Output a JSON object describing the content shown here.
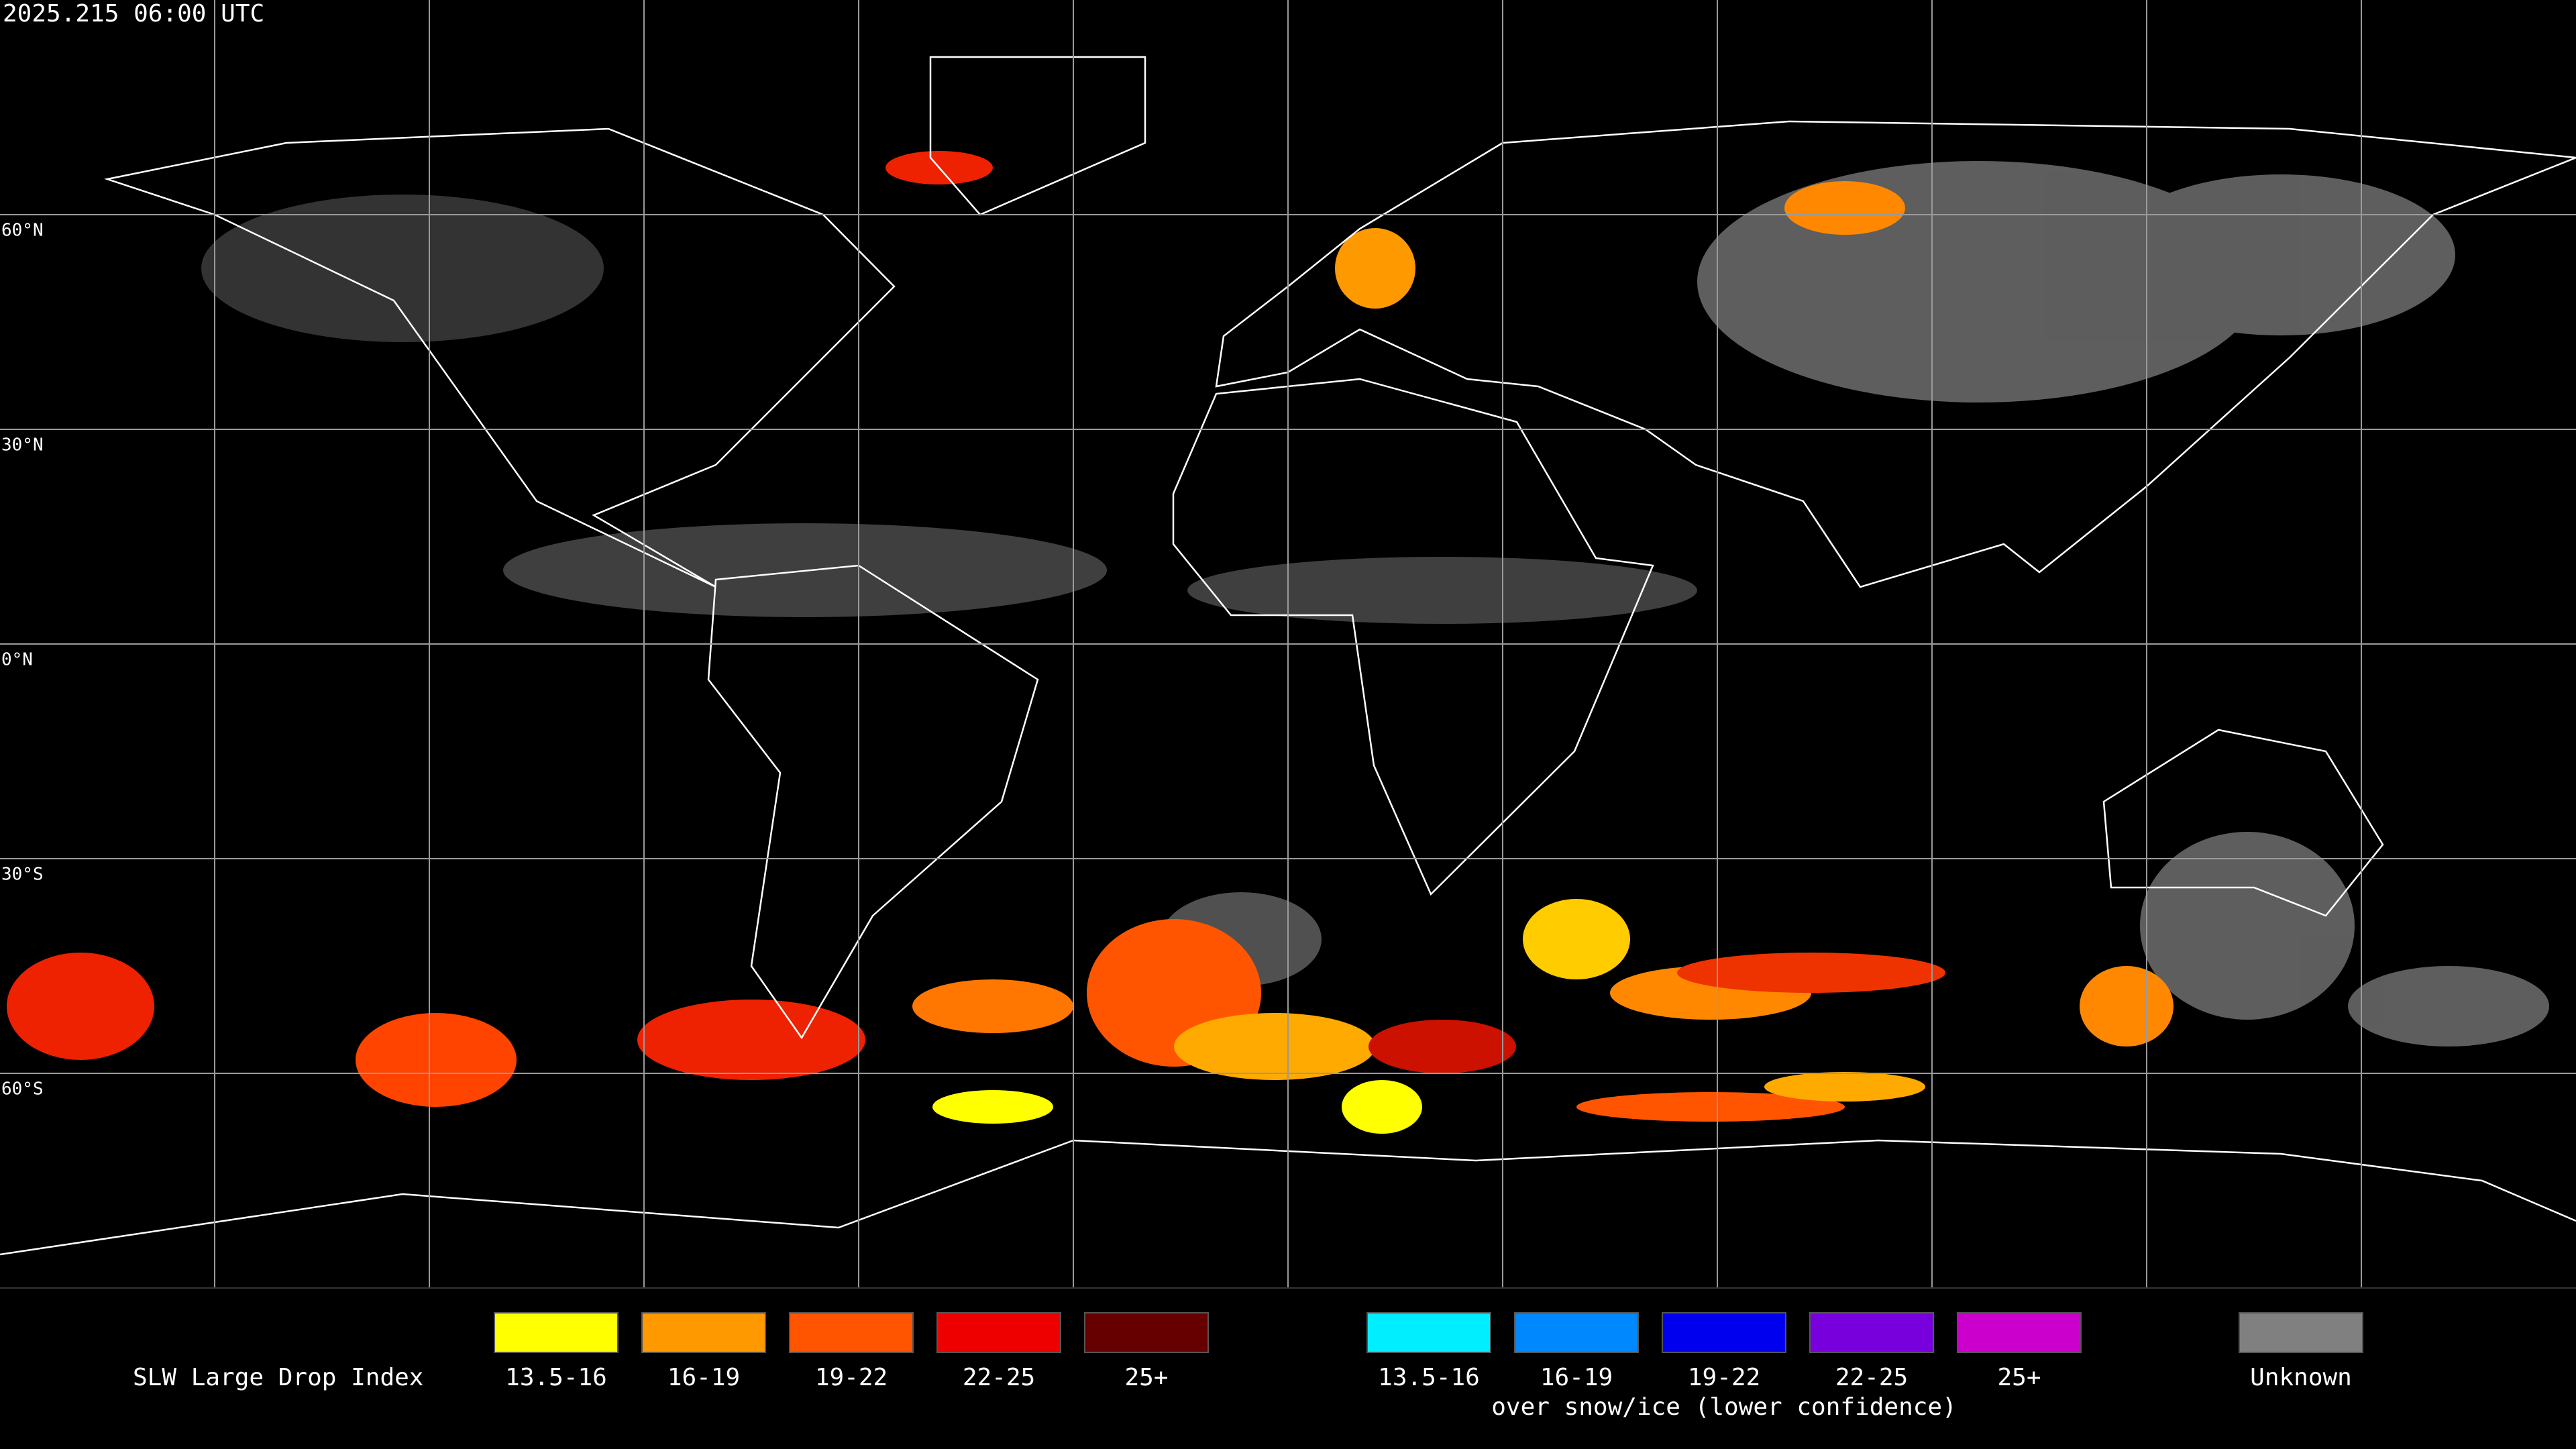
{
  "header": {
    "timestamp": "2025.215 06:00 UTC"
  },
  "map": {
    "lat_labels": [
      "60°N",
      "30°N",
      "0°N",
      "30°S",
      "60°S"
    ]
  },
  "legend": {
    "title": "SLW Large Drop Index",
    "warm": [
      {
        "label": "13.5-16",
        "color": "#ffff00"
      },
      {
        "label": "16-19",
        "color": "#ff9900"
      },
      {
        "label": "19-22",
        "color": "#ff5500"
      },
      {
        "label": "22-25",
        "color": "#ee0000"
      },
      {
        "label": "25+",
        "color": "#660000"
      }
    ],
    "cool": [
      {
        "label": "13.5-16",
        "color": "#00eeff"
      },
      {
        "label": "16-19",
        "color": "#0088ff"
      },
      {
        "label": "19-22",
        "color": "#0000ee"
      },
      {
        "label": "22-25",
        "color": "#7700dd"
      },
      {
        "label": "25+",
        "color": "#cc00cc"
      }
    ],
    "cool_note": "over snow/ice (lower confidence)",
    "unknown": {
      "label": "Unknown",
      "color": "#808080"
    }
  }
}
